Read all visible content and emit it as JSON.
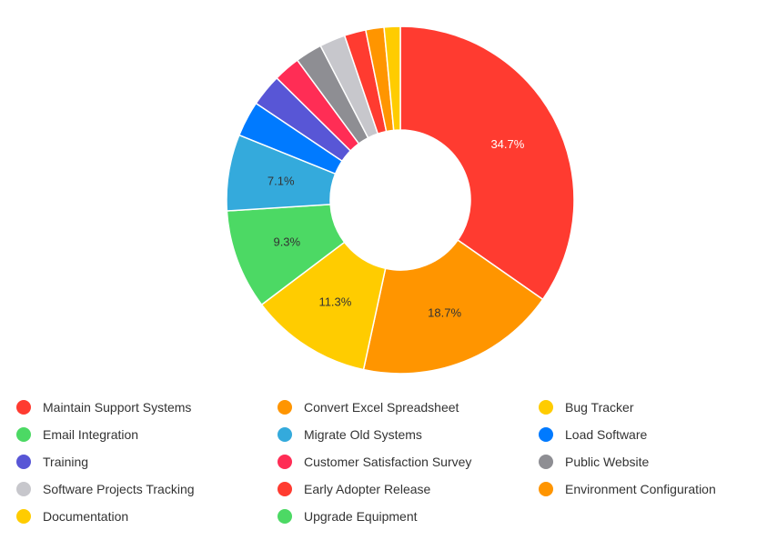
{
  "chart_data": {
    "type": "pie",
    "variant": "donut",
    "categories": [
      "Maintain Support Systems",
      "Convert Excel Spreadsheet",
      "Bug Tracker",
      "Email Integration",
      "Migrate Old Systems",
      "Load Software",
      "Training",
      "Customer Satisfaction Survey",
      "Public Website",
      "Software Projects Tracking",
      "Early Adopter Release",
      "Environment Configuration",
      "Documentation",
      "Upgrade Equipment"
    ],
    "values": [
      34.7,
      18.7,
      11.3,
      9.3,
      7.1,
      3.3,
      3.0,
      2.5,
      2.5,
      2.4,
      2.0,
      1.7,
      1.5,
      0.0
    ],
    "data_labels": [
      "34.7%",
      "18.7%",
      "11.3%",
      "9.3%",
      "7.1%",
      "",
      "",
      "",
      "",
      "",
      "",
      "",
      "",
      ""
    ],
    "colors": [
      "#ff3b30",
      "#ff9500",
      "#ffcc00",
      "#4cd964",
      "#34aadc",
      "#007aff",
      "#5856d6",
      "#ff2d55",
      "#8e8e93",
      "#c7c7cc",
      "#ff3b30",
      "#ff9500",
      "#ffcc00",
      "#4cd964"
    ],
    "label_colors": [
      "#ffffff",
      "#333333",
      "#333333",
      "#333333",
      "#333333",
      "",
      "",
      "",
      "",
      "",
      "",
      "",
      "",
      ""
    ],
    "legend_position": "bottom",
    "title": "",
    "xlabel": "",
    "ylabel": ""
  }
}
